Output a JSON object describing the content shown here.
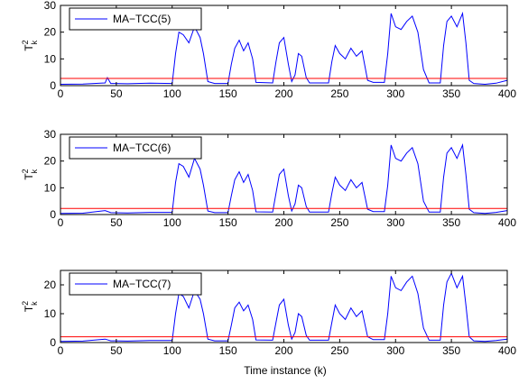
{
  "figure": {
    "xlabel": "Time instance (k)"
  },
  "chart_data": [
    {
      "type": "line",
      "ylabel_base": "T",
      "ylabel_sup": "2",
      "ylabel_sub": "k",
      "xlim": [
        0,
        400
      ],
      "ylim": [
        0,
        30
      ],
      "xticks": [
        0,
        50,
        100,
        150,
        200,
        250,
        300,
        350,
        400
      ],
      "yticks": [
        0,
        10,
        20,
        30
      ],
      "legend_placement": "top-left",
      "series": [
        {
          "name": "MA−TCC(5)",
          "color": "#0000ff",
          "x": [
            0,
            20,
            40,
            42,
            45,
            60,
            80,
            100,
            103,
            106,
            110,
            115,
            120,
            125,
            128,
            132,
            138,
            150,
            153,
            156,
            160,
            164,
            168,
            172,
            175,
            190,
            193,
            196,
            200,
            204,
            207,
            210,
            213,
            216,
            220,
            223,
            230,
            240,
            243,
            246,
            250,
            255,
            260,
            265,
            270,
            275,
            280,
            290,
            293,
            296,
            300,
            305,
            310,
            315,
            320,
            325,
            330,
            340,
            343,
            346,
            350,
            355,
            360,
            363,
            366,
            370,
            380,
            390,
            400
          ],
          "values": [
            0.5,
            0.6,
            1.0,
            3.0,
            0.8,
            0.7,
            0.9,
            0.8,
            12,
            20,
            19,
            16,
            22,
            18,
            12,
            1.5,
            0.8,
            0.8,
            8,
            14,
            17,
            13,
            16,
            10,
            1.2,
            1.0,
            9,
            16,
            18,
            8,
            1.5,
            4,
            12,
            11,
            3,
            1.0,
            1.0,
            1.0,
            9,
            15,
            12,
            10,
            14,
            11,
            13,
            2,
            1.2,
            1.2,
            12,
            27,
            22,
            21,
            24,
            26,
            20,
            6,
            1.0,
            1.0,
            15,
            24,
            26,
            22,
            27,
            16,
            2,
            0.8,
            0.5,
            0.9,
            2.0
          ]
        },
        {
          "name": "threshold",
          "color": "#ff0000",
          "x": [
            0,
            400
          ],
          "values": [
            2.7,
            2.7
          ]
        }
      ],
      "legend": [
        "MA−TCC(5)"
      ]
    },
    {
      "type": "line",
      "ylabel_base": "T",
      "ylabel_sup": "2",
      "ylabel_sub": "k",
      "xlim": [
        0,
        400
      ],
      "ylim": [
        0,
        30
      ],
      "xticks": [
        0,
        50,
        100,
        150,
        200,
        250,
        300,
        350,
        400
      ],
      "yticks": [
        0,
        10,
        20,
        30
      ],
      "legend_placement": "top-left",
      "series": [
        {
          "name": "MA−TCC(6)",
          "color": "#0000ff",
          "x": [
            0,
            20,
            40,
            45,
            60,
            80,
            100,
            103,
            106,
            110,
            115,
            120,
            125,
            128,
            132,
            138,
            150,
            153,
            156,
            160,
            164,
            168,
            172,
            175,
            190,
            193,
            196,
            200,
            204,
            207,
            210,
            213,
            216,
            220,
            223,
            230,
            240,
            243,
            246,
            250,
            255,
            260,
            265,
            270,
            275,
            280,
            290,
            293,
            296,
            300,
            305,
            310,
            315,
            320,
            325,
            330,
            340,
            343,
            346,
            350,
            355,
            360,
            363,
            366,
            370,
            380,
            390,
            400
          ],
          "values": [
            0.4,
            0.5,
            1.5,
            0.7,
            0.6,
            0.8,
            0.8,
            12,
            19,
            18,
            14,
            21,
            17,
            11,
            1.3,
            0.7,
            0.7,
            7,
            13,
            16,
            12,
            15,
            9,
            1.0,
            0.9,
            8,
            15,
            17,
            7,
            1.3,
            4,
            11,
            10,
            3,
            0.9,
            0.9,
            0.9,
            8,
            14,
            11,
            9,
            13,
            10,
            12,
            2,
            1.1,
            1.1,
            11,
            26,
            21,
            20,
            23,
            25,
            19,
            5,
            0.9,
            0.9,
            14,
            23,
            25,
            21,
            26,
            15,
            2,
            0.7,
            0.4,
            0.8,
            1.5
          ]
        },
        {
          "name": "threshold",
          "color": "#ff0000",
          "x": [
            0,
            400
          ],
          "values": [
            2.3,
            2.3
          ]
        }
      ],
      "legend": [
        "MA−TCC(6)"
      ]
    },
    {
      "type": "line",
      "ylabel_base": "T",
      "ylabel_sup": "2",
      "ylabel_sub": "k",
      "xlim": [
        0,
        400
      ],
      "ylim": [
        0,
        25
      ],
      "xticks": [
        0,
        50,
        100,
        150,
        200,
        250,
        300,
        350,
        400
      ],
      "yticks": [
        0,
        10,
        20
      ],
      "legend_placement": "top-left",
      "series": [
        {
          "name": "MA−TCC(7)",
          "color": "#0000ff",
          "x": [
            0,
            20,
            40,
            45,
            60,
            80,
            100,
            103,
            106,
            110,
            115,
            120,
            125,
            128,
            132,
            138,
            150,
            153,
            156,
            160,
            164,
            168,
            172,
            175,
            190,
            193,
            196,
            200,
            204,
            207,
            210,
            213,
            216,
            220,
            223,
            230,
            240,
            243,
            246,
            250,
            255,
            260,
            265,
            270,
            275,
            280,
            290,
            293,
            296,
            300,
            305,
            310,
            315,
            320,
            325,
            330,
            340,
            343,
            346,
            350,
            355,
            360,
            363,
            366,
            370,
            380,
            390,
            400
          ],
          "values": [
            0.4,
            0.5,
            1.2,
            0.6,
            0.5,
            0.7,
            0.7,
            10,
            17,
            16,
            12,
            18,
            15,
            10,
            1.2,
            0.6,
            0.6,
            6,
            12,
            14,
            11,
            13,
            8,
            0.9,
            0.8,
            7,
            13,
            15,
            6,
            1.2,
            3.5,
            10,
            9,
            2.5,
            0.8,
            0.8,
            0.8,
            7,
            13,
            10,
            8,
            12,
            9,
            11,
            2,
            1.0,
            1.0,
            10,
            23,
            19,
            18,
            21,
            23,
            17,
            5,
            0.8,
            0.8,
            13,
            21,
            24,
            19,
            23,
            13,
            2,
            0.6,
            0.4,
            0.7,
            1.2
          ]
        },
        {
          "name": "threshold",
          "color": "#ff0000",
          "x": [
            0,
            400
          ],
          "values": [
            2.0,
            2.0
          ]
        }
      ],
      "legend": [
        "MA−TCC(7)"
      ]
    }
  ]
}
